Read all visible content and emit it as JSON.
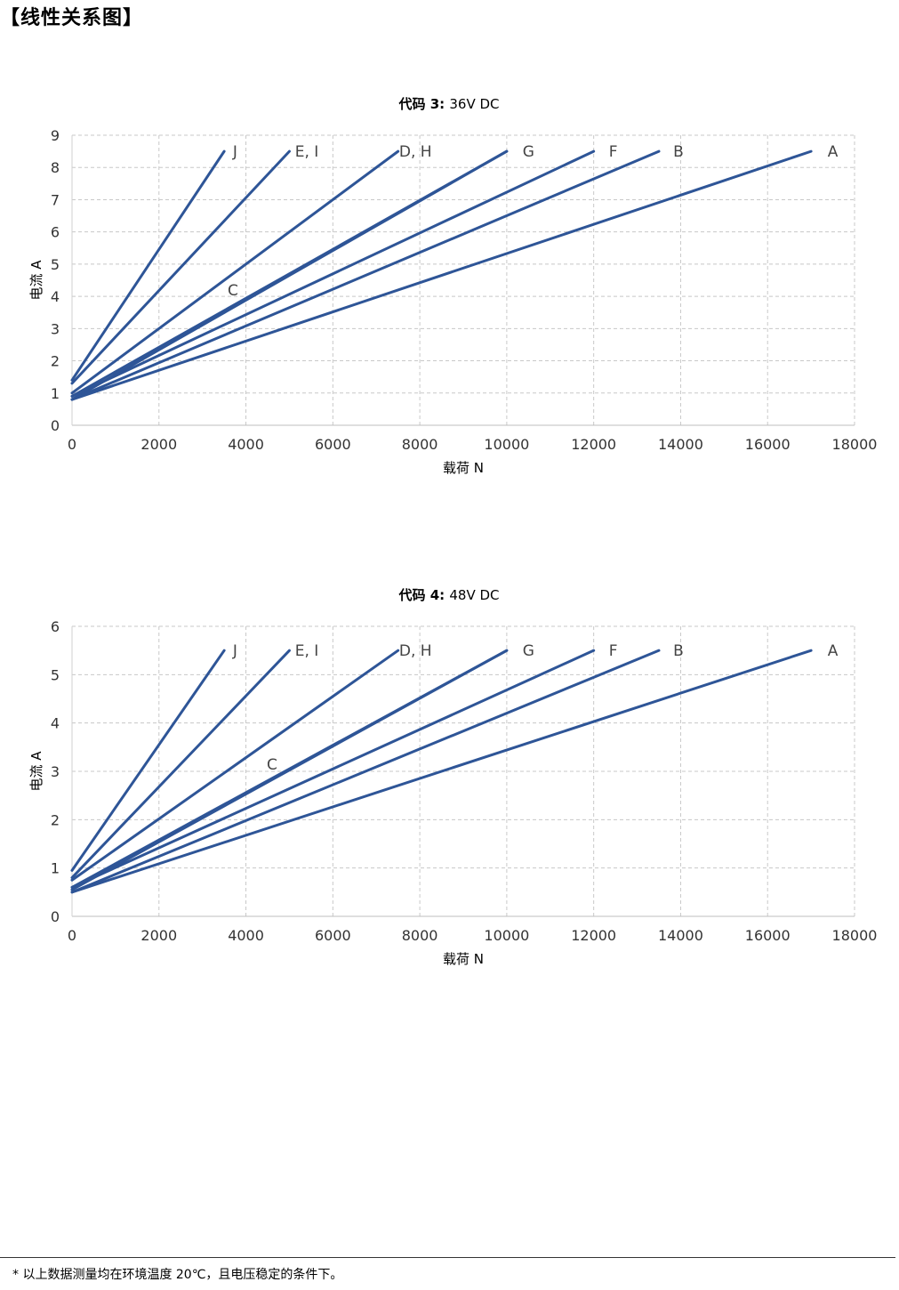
{
  "page": {
    "heading": "【线性关系图】",
    "footnote": "* 以上数据测量均在环境温度 20℃，且电压稳定的条件下。"
  },
  "chart_data": [
    {
      "type": "line",
      "title": "代码 3:",
      "subtitle": "36V DC",
      "xlabel": "载荷 N",
      "ylabel": "电流 A",
      "xlim": [
        0,
        18000
      ],
      "ylim": [
        0,
        9
      ],
      "xticks": [
        0,
        2000,
        4000,
        6000,
        8000,
        10000,
        12000,
        14000,
        16000,
        18000
      ],
      "yticks": [
        0,
        1,
        2,
        3,
        4,
        5,
        6,
        7,
        8,
        9
      ],
      "grid": true,
      "series_color": "#2e5597",
      "series": [
        {
          "name": "J",
          "x": [
            0,
            3500
          ],
          "y": [
            1.4,
            8.5
          ],
          "label_x": 3750
        },
        {
          "name": "E, I",
          "x": [
            0,
            5000
          ],
          "y": [
            1.3,
            8.5
          ],
          "label_x": 5400
        },
        {
          "name": "D, H",
          "x": [
            0,
            7500
          ],
          "y": [
            1.0,
            8.5
          ],
          "label_x": 7900
        },
        {
          "name": "G",
          "x": [
            0,
            10000
          ],
          "y": [
            0.9,
            8.5
          ],
          "label_x": 10500
        },
        {
          "name": "C",
          "x": [
            0,
            10000
          ],
          "y": [
            0.8,
            8.5
          ],
          "label_x": 3700,
          "label_y": 4.2
        },
        {
          "name": "F",
          "x": [
            0,
            12000
          ],
          "y": [
            0.9,
            8.5
          ],
          "label_x": 12450
        },
        {
          "name": "B",
          "x": [
            0,
            13500
          ],
          "y": [
            0.8,
            8.5
          ],
          "label_x": 13950
        },
        {
          "name": "A",
          "x": [
            0,
            17000
          ],
          "y": [
            0.8,
            8.5
          ],
          "label_x": 17500
        }
      ]
    },
    {
      "type": "line",
      "title": "代码 4:",
      "subtitle": "48V DC",
      "xlabel": "载荷 N",
      "ylabel": "电流 A",
      "xlim": [
        0,
        18000
      ],
      "ylim": [
        0,
        6
      ],
      "xticks": [
        0,
        2000,
        4000,
        6000,
        8000,
        10000,
        12000,
        14000,
        16000,
        18000
      ],
      "yticks": [
        0,
        1,
        2,
        3,
        4,
        5,
        6
      ],
      "grid": true,
      "series_color": "#2e5597",
      "series": [
        {
          "name": "J",
          "x": [
            0,
            3500
          ],
          "y": [
            0.95,
            5.5
          ],
          "label_x": 3750
        },
        {
          "name": "E, I",
          "x": [
            0,
            5000
          ],
          "y": [
            0.8,
            5.5
          ],
          "label_x": 5400
        },
        {
          "name": "D, H",
          "x": [
            0,
            7500
          ],
          "y": [
            0.75,
            5.5
          ],
          "label_x": 7900
        },
        {
          "name": "G",
          "x": [
            0,
            10000
          ],
          "y": [
            0.6,
            5.5
          ],
          "label_x": 10500
        },
        {
          "name": "C",
          "x": [
            0,
            10000
          ],
          "y": [
            0.55,
            5.5
          ],
          "label_x": 4600,
          "label_y": 3.15
        },
        {
          "name": "F",
          "x": [
            0,
            12000
          ],
          "y": [
            0.6,
            5.5
          ],
          "label_x": 12450
        },
        {
          "name": "B",
          "x": [
            0,
            13500
          ],
          "y": [
            0.5,
            5.5
          ],
          "label_x": 13950
        },
        {
          "name": "A",
          "x": [
            0,
            17000
          ],
          "y": [
            0.5,
            5.5
          ],
          "label_x": 17500
        }
      ]
    }
  ]
}
